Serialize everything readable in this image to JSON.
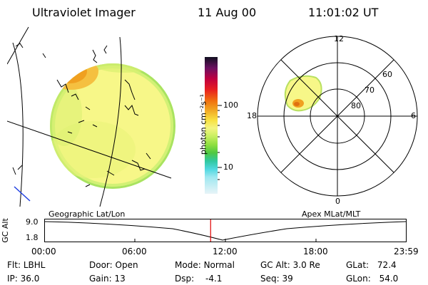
{
  "header": {
    "title": "Ultraviolet Imager",
    "date": "11 Aug 00",
    "time": "11:01:02 UT"
  },
  "colorbar": {
    "label": "photon cm⁻²s⁻¹",
    "ticks": [
      "100",
      "10"
    ],
    "scale": "log"
  },
  "polar_plot": {
    "mlt_labels": {
      "top": "12",
      "left": "18",
      "right": "6",
      "bottom": "0"
    },
    "lat_labels": [
      "60",
      "70",
      "80"
    ]
  },
  "panels": {
    "left_caption": "Geographic Lat/Lon",
    "right_caption": "Apex MLat/MLT"
  },
  "altitude_strip": {
    "axis_label": "GC Alt",
    "y_ticks": [
      "9.0",
      "1.8"
    ],
    "x_ticks": [
      "00:00",
      "06:00",
      "12:00",
      "18:00",
      "23:59"
    ],
    "current_marker_hour": 11.02
  },
  "status": {
    "filter": {
      "label": "Flt:",
      "value": "LBHL"
    },
    "ip": {
      "label": "IP:",
      "value": "36.0"
    },
    "door": {
      "label": "Door:",
      "value": "Open"
    },
    "gain": {
      "label": "Gain:",
      "value": "13"
    },
    "mode": {
      "label": "Mode:",
      "value": "Normal"
    },
    "dsp": {
      "label": "Dsp:",
      "value": "-4.1"
    },
    "gc_alt": {
      "label": "GC Alt:",
      "value": "3.0 Re"
    },
    "seq": {
      "label": "Seq:",
      "value": "39"
    },
    "glat": {
      "label": "GLat:",
      "value": "72.4"
    },
    "glon": {
      "label": "GLon:",
      "value": "54.0"
    }
  },
  "colors": {
    "disk_fill": "#f7f788",
    "auroral_orange": "#f0a020",
    "auroral_core": "#e07010",
    "limb_cyan": "#40d8d8",
    "marker_red": "#e00000",
    "strip_bg": "#ffffff"
  }
}
